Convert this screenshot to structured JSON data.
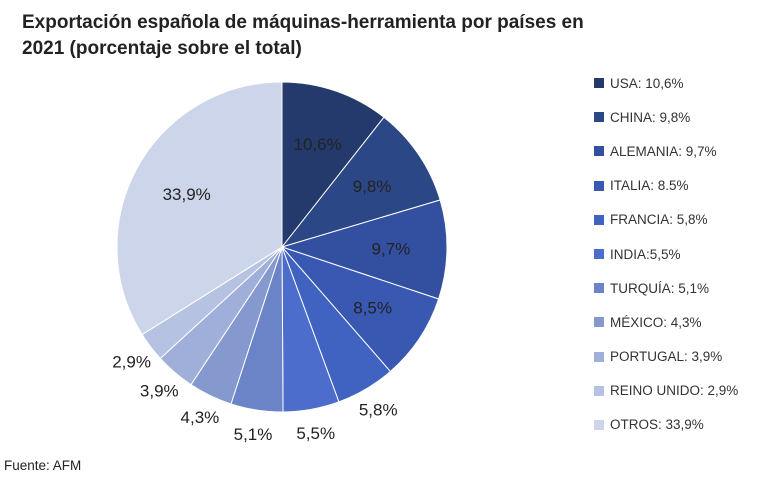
{
  "chart_data": {
    "type": "pie",
    "title_line1": "Exportación española de máquinas-herramienta por países en",
    "title_line2": "2021 (porcentaje sobre el total)",
    "slices": [
      {
        "legend": "USA: 10,6%",
        "label": "10,6%",
        "value": 10.6,
        "color": "#243a6c"
      },
      {
        "legend": "CHINA: 9,8%",
        "label": "9,8%",
        "value": 9.8,
        "color": "#2c4786"
      },
      {
        "legend": "ALEMANIA: 9,7%",
        "label": "9,7%",
        "value": 9.7,
        "color": "#3350a0"
      },
      {
        "legend": "ITALIA: 8.5%",
        "label": "8,5%",
        "value": 8.5,
        "color": "#3858b2"
      },
      {
        "legend": "FRANCIA: 5,8%",
        "label": "5,8%",
        "value": 5.8,
        "color": "#4062c1"
      },
      {
        "legend": "INDIA:5,5%",
        "label": "5,5%",
        "value": 5.5,
        "color": "#4c6dcb"
      },
      {
        "legend": "TURQUÍA: 5,1%",
        "label": "5,1%",
        "value": 5.1,
        "color": "#6b84c8"
      },
      {
        "legend": "MÉXICO: 4,3%",
        "label": "4,3%",
        "value": 4.3,
        "color": "#8599cf"
      },
      {
        "legend": "PORTUGAL: 3,9%",
        "label": "3,9%",
        "value": 3.9,
        "color": "#9fafd9"
      },
      {
        "legend": "REINO UNIDO: 2,9%",
        "label": "2,9%",
        "value": 2.9,
        "color": "#b6c2e1"
      },
      {
        "legend": "OTROS: 33,9%",
        "label": "33,9%",
        "value": 33.9,
        "color": "#cdd5ea"
      }
    ]
  },
  "source": "Fuente: AFM"
}
